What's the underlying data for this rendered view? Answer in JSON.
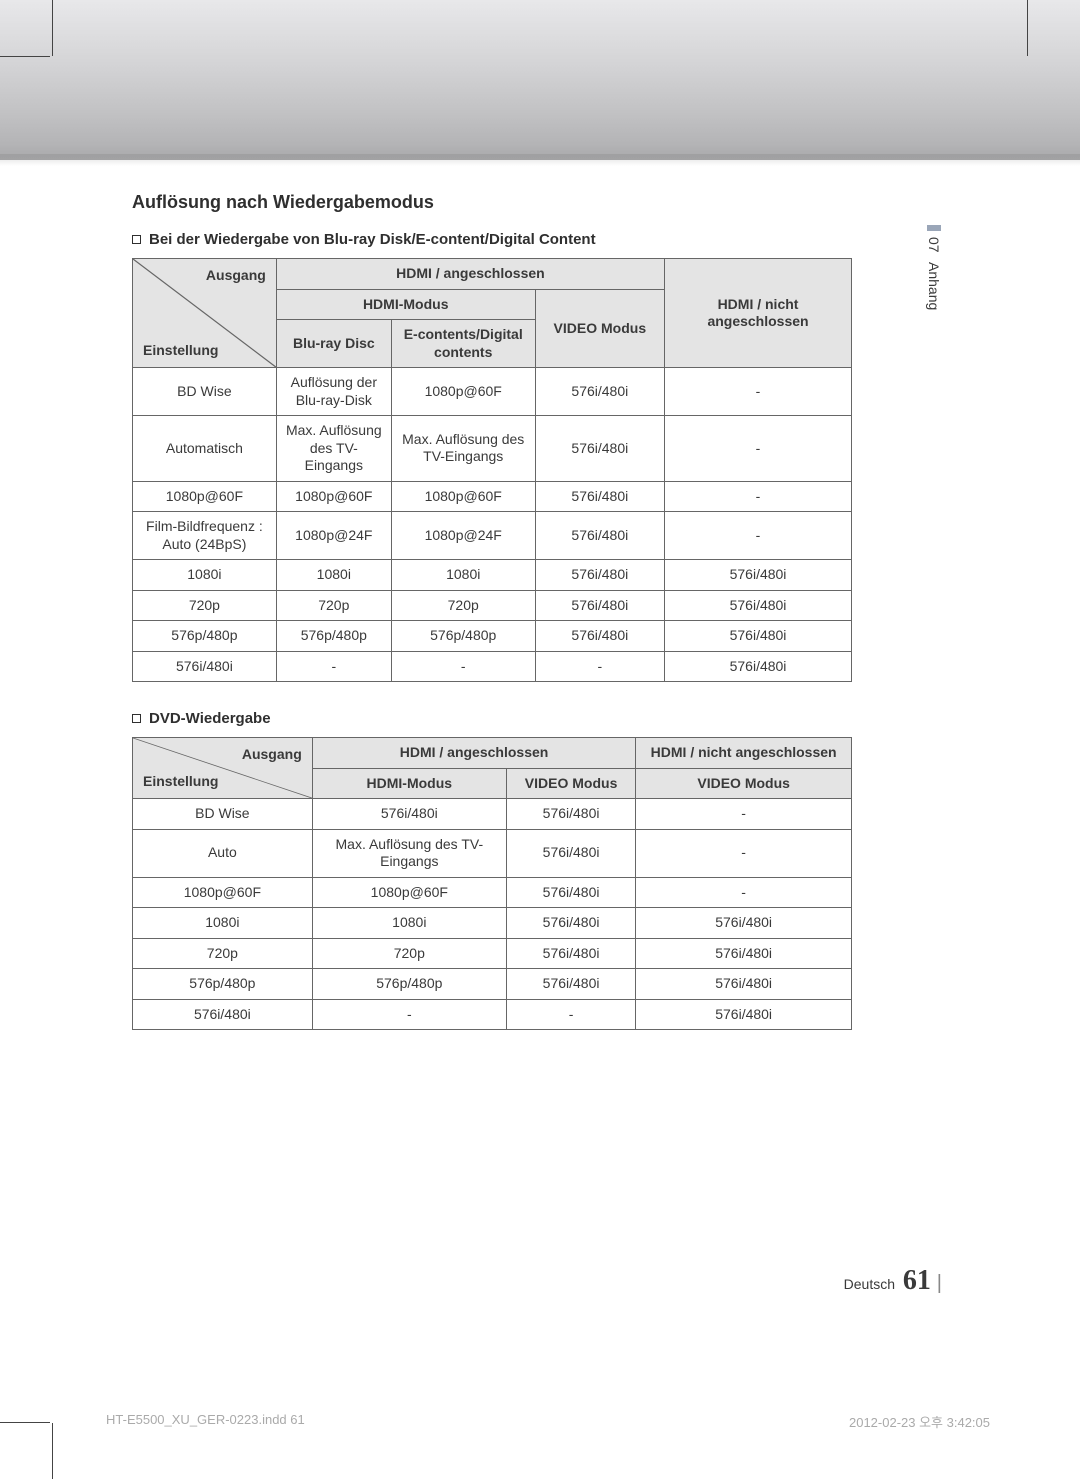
{
  "section_title": "Auflösung nach Wiedergabemodus",
  "sub1": "Bei der Wiedergabe von Blu-ray Disk/E-content/Digital Content",
  "sub2": "DVD-Wiedergabe",
  "side": {
    "num": "07",
    "label": "Anhang"
  },
  "footer": {
    "lang": "Deutsch",
    "page": "61"
  },
  "print": {
    "file": "HT-E5500_XU_GER-0223.indd   61",
    "ts": "2012-02-23   오후 3:42:05"
  },
  "diag": {
    "ausgang": "Ausgang",
    "einstellung": "Einstellung"
  },
  "table1": {
    "head": {
      "hdmi_conn": "HDMI / angeschlossen",
      "hdmi_not": "HDMI / nicht angeschlossen",
      "hdmi_mode": "HDMI-Modus",
      "video_mode": "VIDEO Modus",
      "bluray": "Blu-ray Disc",
      "econtent": "E-contents/Digital contents"
    },
    "rows": [
      [
        "BD Wise",
        "Auflösung der Blu-ray-Disk",
        "1080p@60F",
        "576i/480i",
        "-"
      ],
      [
        "Automatisch",
        "Max. Auflösung des TV-Eingangs",
        "Max. Auflösung des TV-Eingangs",
        "576i/480i",
        "-"
      ],
      [
        "1080p@60F",
        "1080p@60F",
        "1080p@60F",
        "576i/480i",
        "-"
      ],
      [
        "Film-Bildfrequenz : Auto (24BpS)",
        "1080p@24F",
        "1080p@24F",
        "576i/480i",
        "-"
      ],
      [
        "1080i",
        "1080i",
        "1080i",
        "576i/480i",
        "576i/480i"
      ],
      [
        "720p",
        "720p",
        "720p",
        "576i/480i",
        "576i/480i"
      ],
      [
        "576p/480p",
        "576p/480p",
        "576p/480p",
        "576i/480i",
        "576i/480i"
      ],
      [
        "576i/480i",
        "-",
        "-",
        "-",
        "576i/480i"
      ]
    ]
  },
  "table2": {
    "head": {
      "hdmi_conn": "HDMI / angeschlossen",
      "hdmi_not": "HDMI / nicht angeschlossen",
      "hdmi_mode": "HDMI-Modus",
      "video_mode": "VIDEO Modus"
    },
    "rows": [
      [
        "BD Wise",
        "576i/480i",
        "576i/480i",
        "-"
      ],
      [
        "Auto",
        "Max. Auflösung des TV-Eingangs",
        "576i/480i",
        "-"
      ],
      [
        "1080p@60F",
        "1080p@60F",
        "576i/480i",
        "-"
      ],
      [
        "1080i",
        "1080i",
        "576i/480i",
        "576i/480i"
      ],
      [
        "720p",
        "720p",
        "576i/480i",
        "576i/480i"
      ],
      [
        "576p/480p",
        "576p/480p",
        "576i/480i",
        "576i/480i"
      ],
      [
        "576i/480i",
        "-",
        "-",
        "576i/480i"
      ]
    ]
  }
}
